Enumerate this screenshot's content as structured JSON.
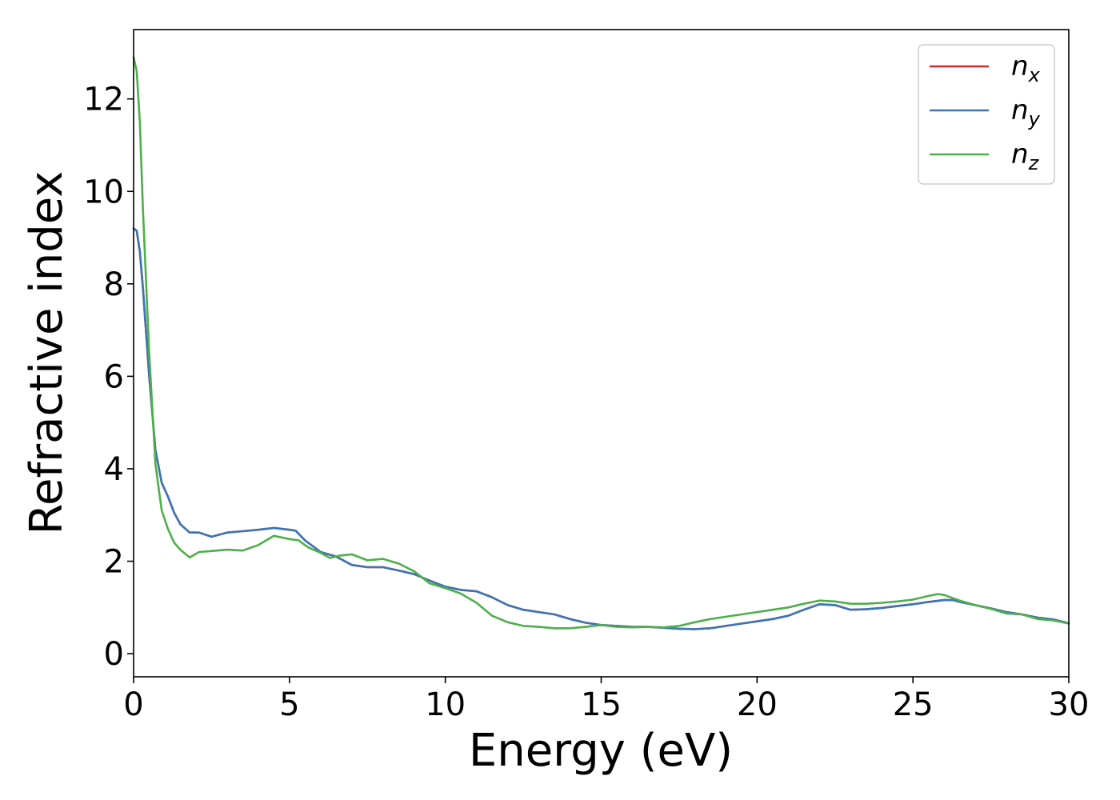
{
  "chart_data": {
    "type": "line",
    "title": "",
    "xlabel": "Energy (eV)",
    "ylabel": "Refractive index",
    "xlim": [
      0,
      30
    ],
    "ylim": [
      -0.5,
      13.5
    ],
    "x_ticks": [
      0,
      5,
      10,
      15,
      20,
      25,
      30
    ],
    "y_ticks": [
      0,
      2,
      4,
      6,
      8,
      10,
      12
    ],
    "grid": false,
    "legend_position": "top-right",
    "series": [
      {
        "name": "n_x",
        "legend_base": "n",
        "legend_sub": "x",
        "color": "#d62728",
        "points": [
          [
            0,
            9.2
          ],
          [
            0.1,
            9.15
          ],
          [
            0.2,
            8.7
          ],
          [
            0.3,
            7.9
          ],
          [
            0.5,
            6.0
          ],
          [
            0.7,
            4.4
          ],
          [
            0.9,
            3.7
          ],
          [
            1.1,
            3.4
          ],
          [
            1.3,
            3.05
          ],
          [
            1.5,
            2.8
          ],
          [
            1.8,
            2.62
          ],
          [
            2.1,
            2.62
          ],
          [
            2.5,
            2.53
          ],
          [
            3.0,
            2.62
          ],
          [
            3.5,
            2.65
          ],
          [
            4.0,
            2.68
          ],
          [
            4.5,
            2.72
          ],
          [
            5.0,
            2.68
          ],
          [
            5.2,
            2.66
          ],
          [
            5.5,
            2.45
          ],
          [
            6.0,
            2.2
          ],
          [
            6.5,
            2.1
          ],
          [
            7.0,
            1.92
          ],
          [
            7.5,
            1.87
          ],
          [
            8.0,
            1.87
          ],
          [
            8.5,
            1.8
          ],
          [
            9.0,
            1.72
          ],
          [
            9.5,
            1.58
          ],
          [
            10.0,
            1.45
          ],
          [
            10.5,
            1.38
          ],
          [
            11.0,
            1.35
          ],
          [
            11.5,
            1.22
          ],
          [
            12.0,
            1.05
          ],
          [
            12.5,
            0.95
          ],
          [
            13.0,
            0.9
          ],
          [
            13.5,
            0.85
          ],
          [
            14.0,
            0.75
          ],
          [
            14.5,
            0.67
          ],
          [
            15.0,
            0.62
          ],
          [
            15.5,
            0.6
          ],
          [
            16.0,
            0.58
          ],
          [
            16.5,
            0.58
          ],
          [
            17.0,
            0.56
          ],
          [
            17.5,
            0.54
          ],
          [
            18.0,
            0.53
          ],
          [
            18.5,
            0.55
          ],
          [
            19.0,
            0.6
          ],
          [
            19.5,
            0.65
          ],
          [
            20.0,
            0.7
          ],
          [
            20.5,
            0.75
          ],
          [
            21.0,
            0.82
          ],
          [
            21.5,
            0.95
          ],
          [
            22.0,
            1.07
          ],
          [
            22.5,
            1.05
          ],
          [
            23.0,
            0.95
          ],
          [
            23.5,
            0.96
          ],
          [
            24.0,
            0.99
          ],
          [
            24.5,
            1.03
          ],
          [
            25.0,
            1.07
          ],
          [
            25.5,
            1.12
          ],
          [
            26.0,
            1.16
          ],
          [
            26.3,
            1.16
          ],
          [
            26.5,
            1.12
          ],
          [
            27.0,
            1.05
          ],
          [
            27.5,
            0.98
          ],
          [
            28.0,
            0.9
          ],
          [
            28.5,
            0.85
          ],
          [
            29.0,
            0.78
          ],
          [
            29.5,
            0.74
          ],
          [
            30.0,
            0.66
          ]
        ]
      },
      {
        "name": "n_y",
        "legend_base": "n",
        "legend_sub": "y",
        "color": "#3a76b4",
        "points": [
          [
            0,
            9.2
          ],
          [
            0.1,
            9.15
          ],
          [
            0.2,
            8.7
          ],
          [
            0.3,
            7.9
          ],
          [
            0.5,
            6.0
          ],
          [
            0.7,
            4.4
          ],
          [
            0.9,
            3.7
          ],
          [
            1.1,
            3.4
          ],
          [
            1.3,
            3.05
          ],
          [
            1.5,
            2.8
          ],
          [
            1.8,
            2.62
          ],
          [
            2.1,
            2.62
          ],
          [
            2.5,
            2.53
          ],
          [
            3.0,
            2.62
          ],
          [
            3.5,
            2.65
          ],
          [
            4.0,
            2.68
          ],
          [
            4.5,
            2.72
          ],
          [
            5.0,
            2.68
          ],
          [
            5.2,
            2.66
          ],
          [
            5.5,
            2.45
          ],
          [
            6.0,
            2.2
          ],
          [
            6.5,
            2.1
          ],
          [
            7.0,
            1.92
          ],
          [
            7.5,
            1.87
          ],
          [
            8.0,
            1.87
          ],
          [
            8.5,
            1.8
          ],
          [
            9.0,
            1.72
          ],
          [
            9.5,
            1.58
          ],
          [
            10.0,
            1.45
          ],
          [
            10.5,
            1.38
          ],
          [
            11.0,
            1.35
          ],
          [
            11.5,
            1.22
          ],
          [
            12.0,
            1.05
          ],
          [
            12.5,
            0.95
          ],
          [
            13.0,
            0.9
          ],
          [
            13.5,
            0.85
          ],
          [
            14.0,
            0.75
          ],
          [
            14.5,
            0.67
          ],
          [
            15.0,
            0.62
          ],
          [
            15.5,
            0.6
          ],
          [
            16.0,
            0.58
          ],
          [
            16.5,
            0.58
          ],
          [
            17.0,
            0.56
          ],
          [
            17.5,
            0.54
          ],
          [
            18.0,
            0.53
          ],
          [
            18.5,
            0.55
          ],
          [
            19.0,
            0.6
          ],
          [
            19.5,
            0.65
          ],
          [
            20.0,
            0.7
          ],
          [
            20.5,
            0.75
          ],
          [
            21.0,
            0.82
          ],
          [
            21.5,
            0.95
          ],
          [
            22.0,
            1.07
          ],
          [
            22.5,
            1.05
          ],
          [
            23.0,
            0.95
          ],
          [
            23.5,
            0.96
          ],
          [
            24.0,
            0.99
          ],
          [
            24.5,
            1.03
          ],
          [
            25.0,
            1.07
          ],
          [
            25.5,
            1.12
          ],
          [
            26.0,
            1.16
          ],
          [
            26.3,
            1.16
          ],
          [
            26.5,
            1.12
          ],
          [
            27.0,
            1.05
          ],
          [
            27.5,
            0.98
          ],
          [
            28.0,
            0.9
          ],
          [
            28.5,
            0.85
          ],
          [
            29.0,
            0.78
          ],
          [
            29.5,
            0.74
          ],
          [
            30.0,
            0.66
          ]
        ]
      },
      {
        "name": "n_z",
        "legend_base": "n",
        "legend_sub": "z",
        "color": "#4daf4a",
        "points": [
          [
            0,
            12.9
          ],
          [
            0.1,
            12.6
          ],
          [
            0.2,
            11.5
          ],
          [
            0.3,
            9.6
          ],
          [
            0.5,
            6.5
          ],
          [
            0.7,
            4.1
          ],
          [
            0.9,
            3.1
          ],
          [
            1.1,
            2.7
          ],
          [
            1.3,
            2.4
          ],
          [
            1.5,
            2.25
          ],
          [
            1.8,
            2.08
          ],
          [
            2.1,
            2.2
          ],
          [
            2.5,
            2.22
          ],
          [
            3.0,
            2.25
          ],
          [
            3.5,
            2.23
          ],
          [
            4.0,
            2.35
          ],
          [
            4.5,
            2.55
          ],
          [
            5.0,
            2.48
          ],
          [
            5.3,
            2.45
          ],
          [
            5.6,
            2.3
          ],
          [
            6.0,
            2.18
          ],
          [
            6.3,
            2.07
          ],
          [
            6.6,
            2.12
          ],
          [
            7.0,
            2.15
          ],
          [
            7.5,
            2.02
          ],
          [
            8.0,
            2.05
          ],
          [
            8.5,
            1.95
          ],
          [
            9.0,
            1.78
          ],
          [
            9.5,
            1.52
          ],
          [
            10.0,
            1.42
          ],
          [
            10.5,
            1.3
          ],
          [
            11.0,
            1.1
          ],
          [
            11.5,
            0.82
          ],
          [
            12.0,
            0.68
          ],
          [
            12.5,
            0.6
          ],
          [
            13.0,
            0.58
          ],
          [
            13.5,
            0.55
          ],
          [
            14.0,
            0.55
          ],
          [
            14.5,
            0.58
          ],
          [
            15.0,
            0.62
          ],
          [
            15.5,
            0.58
          ],
          [
            16.0,
            0.57
          ],
          [
            16.5,
            0.58
          ],
          [
            17.0,
            0.57
          ],
          [
            17.5,
            0.6
          ],
          [
            18.0,
            0.68
          ],
          [
            18.5,
            0.75
          ],
          [
            19.0,
            0.8
          ],
          [
            19.5,
            0.85
          ],
          [
            20.0,
            0.9
          ],
          [
            20.5,
            0.95
          ],
          [
            21.0,
            1.0
          ],
          [
            21.5,
            1.08
          ],
          [
            22.0,
            1.15
          ],
          [
            22.5,
            1.13
          ],
          [
            23.0,
            1.08
          ],
          [
            23.5,
            1.08
          ],
          [
            24.0,
            1.1
          ],
          [
            24.5,
            1.13
          ],
          [
            25.0,
            1.17
          ],
          [
            25.5,
            1.25
          ],
          [
            25.8,
            1.29
          ],
          [
            26.0,
            1.27
          ],
          [
            26.5,
            1.15
          ],
          [
            27.0,
            1.05
          ],
          [
            27.5,
            0.97
          ],
          [
            28.0,
            0.87
          ],
          [
            28.5,
            0.85
          ],
          [
            29.0,
            0.75
          ],
          [
            29.5,
            0.72
          ],
          [
            30.0,
            0.65
          ]
        ]
      }
    ]
  }
}
